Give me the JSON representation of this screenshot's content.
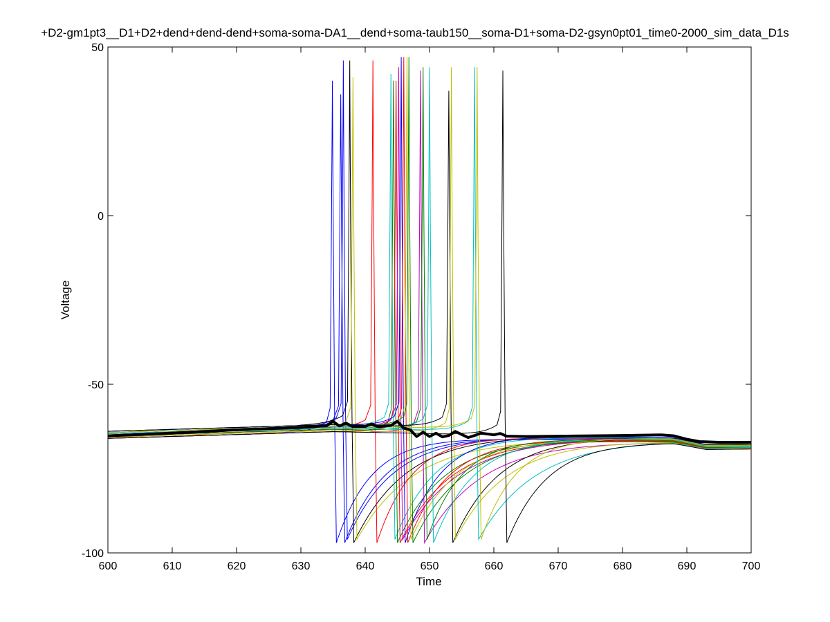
{
  "chart_data": {
    "type": "line",
    "title": "+D2-gm1pt3__D1+D2+dend+dend-dend+soma-soma-DA1__dend+soma-taub150__soma-D1+soma-D2-gsyn0pt01_time0-2000_sim_data_D1s",
    "xlabel": "Time",
    "ylabel": "Voltage",
    "xlim": [
      600,
      700
    ],
    "ylim": [
      -100,
      50
    ],
    "x_ticks": [
      "600",
      "610",
      "620",
      "630",
      "640",
      "650",
      "660",
      "670",
      "680",
      "690",
      "700"
    ],
    "y_ticks": [
      "50",
      "0",
      "-50",
      "-100"
    ],
    "grid": false,
    "legend": "none",
    "baseline": {
      "start_mv": -65,
      "mid_mv": -63,
      "late_mv": -65,
      "end_mv": -67
    },
    "spike_traces": [
      {
        "color": "#0000ff",
        "spike_time": 634.9,
        "peak_mv": 40,
        "trough_mv": -97
      },
      {
        "color": "#0000ff",
        "spike_time": 636.2,
        "peak_mv": 36,
        "trough_mv": -97
      },
      {
        "color": "#0000ff",
        "spike_time": 636.6,
        "peak_mv": 46,
        "trough_mv": -96
      },
      {
        "color": "#000000",
        "spike_time": 637.6,
        "peak_mv": 46,
        "trough_mv": -97
      },
      {
        "color": "#bfbf00",
        "spike_time": 638.1,
        "peak_mv": 41,
        "trough_mv": -96
      },
      {
        "color": "#ff0000",
        "spike_time": 641.2,
        "peak_mv": 46,
        "trough_mv": -97
      },
      {
        "color": "#00bfbf",
        "spike_time": 644.0,
        "peak_mv": 42,
        "trough_mv": -96
      },
      {
        "color": "#008000",
        "spike_time": 644.4,
        "peak_mv": 40,
        "trough_mv": -97
      },
      {
        "color": "#ff0000",
        "spike_time": 644.8,
        "peak_mv": 40,
        "trough_mv": -97
      },
      {
        "color": "#bf00bf",
        "spike_time": 645.2,
        "peak_mv": 44,
        "trough_mv": -96
      },
      {
        "color": "#0000ff",
        "spike_time": 645.6,
        "peak_mv": 47,
        "trough_mv": -97
      },
      {
        "color": "#ff0000",
        "spike_time": 646.0,
        "peak_mv": 47,
        "trough_mv": -97
      },
      {
        "color": "#bfbf00",
        "spike_time": 646.5,
        "peak_mv": 47,
        "trough_mv": -96
      },
      {
        "color": "#008000",
        "spike_time": 646.8,
        "peak_mv": 47,
        "trough_mv": -97
      },
      {
        "color": "#bf00bf",
        "spike_time": 648.6,
        "peak_mv": 43,
        "trough_mv": -97
      },
      {
        "color": "#008000",
        "spike_time": 649.0,
        "peak_mv": 44,
        "trough_mv": -96
      },
      {
        "color": "#00bfbf",
        "spike_time": 650.0,
        "peak_mv": 44,
        "trough_mv": -97
      },
      {
        "color": "#000000",
        "spike_time": 653.0,
        "peak_mv": 37,
        "trough_mv": -97
      },
      {
        "color": "#bfbf00",
        "spike_time": 653.4,
        "peak_mv": 44,
        "trough_mv": -96
      },
      {
        "color": "#00bfbf",
        "spike_time": 657.0,
        "peak_mv": 44,
        "trough_mv": -96
      },
      {
        "color": "#bfbf00",
        "spike_time": 657.4,
        "peak_mv": 44,
        "trough_mv": -96
      },
      {
        "color": "#000000",
        "spike_time": 661.4,
        "peak_mv": 43,
        "trough_mv": -97
      }
    ],
    "mean_trace": {
      "color": "#000000",
      "x": [
        600,
        610,
        620,
        630,
        634,
        635,
        636,
        637,
        638,
        640,
        641,
        642,
        644,
        645,
        646,
        647,
        648,
        649,
        650,
        651,
        652,
        653,
        654,
        656,
        657,
        658,
        660,
        661,
        662,
        665,
        670,
        680,
        686,
        688,
        690,
        692,
        695,
        700
      ],
      "y": [
        -65.3,
        -64.5,
        -63.5,
        -62.8,
        -62.3,
        -61.0,
        -62.4,
        -61.5,
        -62.5,
        -62.5,
        -61.8,
        -62.6,
        -62.2,
        -61.0,
        -63.0,
        -63.5,
        -65.5,
        -64.2,
        -65.5,
        -64.5,
        -65.6,
        -65.2,
        -64.0,
        -65.8,
        -65.2,
        -64.5,
        -65.0,
        -64.6,
        -65.4,
        -65.5,
        -65.4,
        -65.2,
        -65.0,
        -65.3,
        -66.3,
        -67.0,
        -67.2,
        -67.2
      ]
    }
  }
}
